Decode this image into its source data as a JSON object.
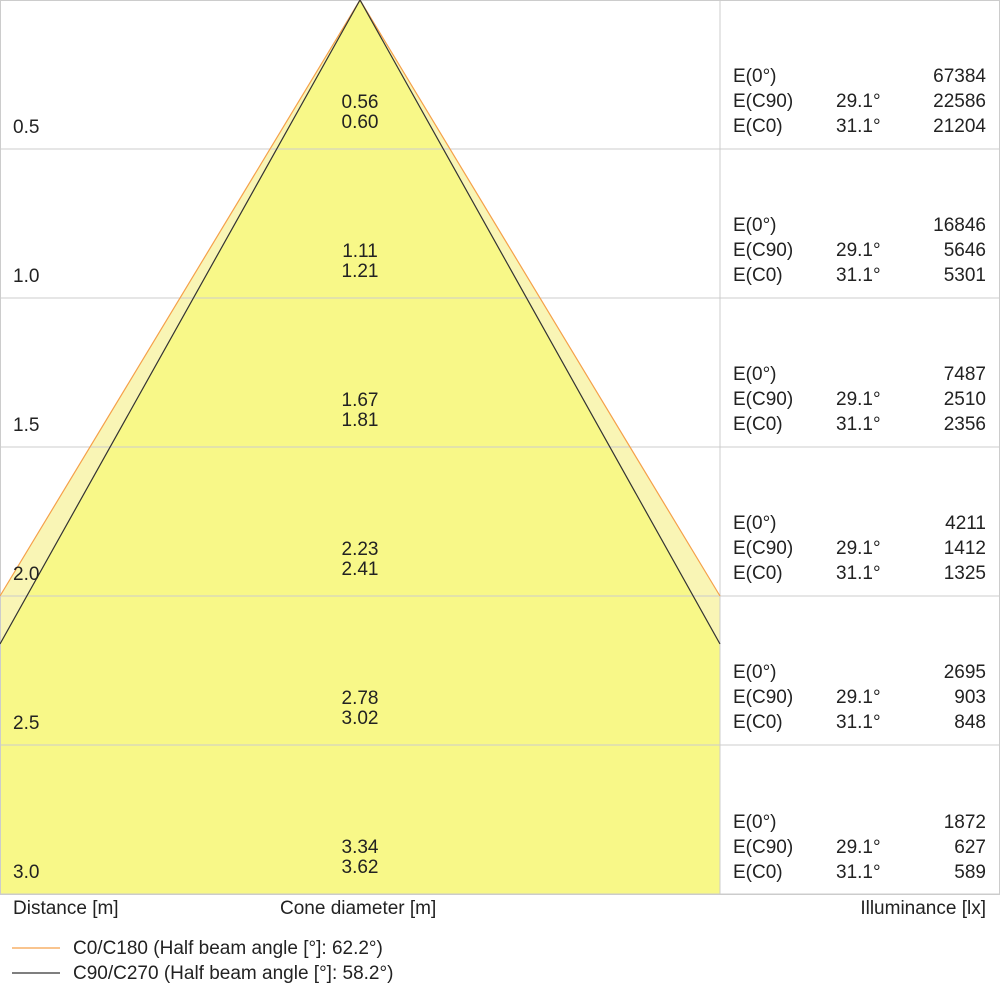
{
  "rows": [
    {
      "distance": "0.5",
      "diam_c90": "0.56",
      "diam_c0": "0.60",
      "e0_label": "E(0°)",
      "e0_value": "67384",
      "ec90_label": "E(C90)",
      "ec90_angle": "29.1°",
      "ec90_value": "22586",
      "ec0_label": "E(C0)",
      "ec0_angle": "31.1°",
      "ec0_value": "21204"
    },
    {
      "distance": "1.0",
      "diam_c90": "1.11",
      "diam_c0": "1.21",
      "e0_label": "E(0°)",
      "e0_value": "16846",
      "ec90_label": "E(C90)",
      "ec90_angle": "29.1°",
      "ec90_value": "5646",
      "ec0_label": "E(C0)",
      "ec0_angle": "31.1°",
      "ec0_value": "5301"
    },
    {
      "distance": "1.5",
      "diam_c90": "1.67",
      "diam_c0": "1.81",
      "e0_label": "E(0°)",
      "e0_value": "7487",
      "ec90_label": "E(C90)",
      "ec90_angle": "29.1°",
      "ec90_value": "2510",
      "ec0_label": "E(C0)",
      "ec0_angle": "31.1°",
      "ec0_value": "2356"
    },
    {
      "distance": "2.0",
      "diam_c90": "2.23",
      "diam_c0": "2.41",
      "e0_label": "E(0°)",
      "e0_value": "4211",
      "ec90_label": "E(C90)",
      "ec90_angle": "29.1°",
      "ec90_value": "1412",
      "ec0_label": "E(C0)",
      "ec0_angle": "31.1°",
      "ec0_value": "1325"
    },
    {
      "distance": "2.5",
      "diam_c90": "2.78",
      "diam_c0": "3.02",
      "e0_label": "E(0°)",
      "e0_value": "2695",
      "ec90_label": "E(C90)",
      "ec90_angle": "29.1°",
      "ec90_value": "903",
      "ec0_label": "E(C0)",
      "ec0_angle": "31.1°",
      "ec0_value": "848"
    },
    {
      "distance": "3.0",
      "diam_c90": "3.34",
      "diam_c0": "3.62",
      "e0_label": "E(0°)",
      "e0_value": "1872",
      "ec90_label": "E(C90)",
      "ec90_angle": "29.1°",
      "ec90_value": "627",
      "ec0_label": "E(C0)",
      "ec0_angle": "31.1°",
      "ec0_value": "589"
    }
  ],
  "labels": {
    "distance": "Distance [m]",
    "cone_diameter": "Cone diameter [m]",
    "illuminance": "Illuminance [lx]"
  },
  "legend": [
    {
      "text": "C0/C180 (Half beam angle [°]: 62.2°)",
      "color": "#f5a04a"
    },
    {
      "text": "C90/C270 (Half beam angle [°]: 58.2°)",
      "color": "#333333"
    }
  ],
  "colors": {
    "fill_main": "#f8f888",
    "fill_light": "#f9f5b5",
    "grid": "#cccccc"
  }
}
